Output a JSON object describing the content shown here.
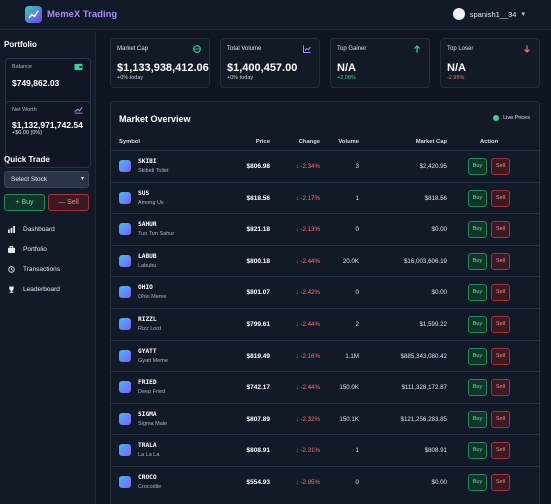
{
  "header": {
    "app_name": "MemeX Trading",
    "username": "spanish1__34"
  },
  "portfolio": {
    "title": "Portfolio",
    "balance_label": "Balance",
    "balance_value": "$749,862.03",
    "networth_label": "Net Worth",
    "networth_value": "$1,132,971,742.54",
    "networth_change": "+$0.00 (0%)"
  },
  "quick_trade": {
    "title": "Quick Trade",
    "select_value": "Select Stock",
    "buy_label": "+ Buy",
    "sell_label": "— Sell"
  },
  "nav": [
    {
      "label": "Dashboard",
      "icon": "chart-bars-icon"
    },
    {
      "label": "Portfolio",
      "icon": "briefcase-icon"
    },
    {
      "label": "Transactions",
      "icon": "history-icon"
    },
    {
      "label": "Leaderboard",
      "icon": "trophy-icon"
    }
  ],
  "stats": [
    {
      "label": "Market Cap",
      "value": "$1,133,938,412.06",
      "sub": "+0% today",
      "icon": "globe-icon",
      "color": "#34d399"
    },
    {
      "label": "Total Volume",
      "value": "$1,400,457.00",
      "sub": "+0% today",
      "icon": "chart-icon",
      "color": "#a78bfa"
    },
    {
      "label": "Top Gainer",
      "value": "N/A",
      "sub": "+2.08%",
      "icon": "arrow-up-icon",
      "color": "#34d399"
    },
    {
      "label": "Top Loser",
      "value": "N/A",
      "sub": "-2.95%",
      "icon": "arrow-down-icon",
      "color": "#f87171"
    }
  ],
  "market": {
    "title": "Market Overview",
    "live_label": "Live Prices",
    "columns": {
      "symbol": "Symbol",
      "price": "Price",
      "change": "Change",
      "volume": "Volume",
      "mcap": "Market Cap",
      "action": "Action"
    },
    "buy_label": "Buy",
    "sell_label": "Sell",
    "rows": [
      {
        "symbol": "SKIBI",
        "name": "Skibidi Toilet",
        "price": "$806.98",
        "change": "-2.34%",
        "volume": "3",
        "mcap": "$2,420.95"
      },
      {
        "symbol": "SUS",
        "name": "Among Us",
        "price": "$818.56",
        "change": "-2.17%",
        "volume": "1",
        "mcap": "$818.56"
      },
      {
        "symbol": "SAHUR",
        "name": "Tun Tun Sahur",
        "price": "$821.18",
        "change": "-2.13%",
        "volume": "0",
        "mcap": "$0.00"
      },
      {
        "symbol": "LABUB",
        "name": "Labubu",
        "price": "$800.18",
        "change": "-2.44%",
        "volume": "20.0K",
        "mcap": "$16,003,606.19"
      },
      {
        "symbol": "OHIO",
        "name": "Ohio Meme",
        "price": "$801.07",
        "change": "-2.42%",
        "volume": "0",
        "mcap": "$0.00"
      },
      {
        "symbol": "RIZZL",
        "name": "Rizz Lord",
        "price": "$799.61",
        "change": "-2.44%",
        "volume": "2",
        "mcap": "$1,599.22"
      },
      {
        "symbol": "GYATT",
        "name": "Gyatt Meme",
        "price": "$819.49",
        "change": "-2.16%",
        "volume": "1.1M",
        "mcap": "$885,343,080.42"
      },
      {
        "symbol": "FRIED",
        "name": "Deep Fried",
        "price": "$742.17",
        "change": "-2.44%",
        "volume": "150.0K",
        "mcap": "$111,328,172.87"
      },
      {
        "symbol": "SIGMA",
        "name": "Sigma Male",
        "price": "$807.89",
        "change": "-2.32%",
        "volume": "150.1K",
        "mcap": "$121,256,283.85"
      },
      {
        "symbol": "TRALA",
        "name": "La La La",
        "price": "$808.91",
        "change": "-2.31%",
        "volume": "1",
        "mcap": "$808.91"
      },
      {
        "symbol": "CROCO",
        "name": "Crocodile",
        "price": "$554.93",
        "change": "-2.95%",
        "volume": "0",
        "mcap": "$0.00"
      }
    ]
  }
}
